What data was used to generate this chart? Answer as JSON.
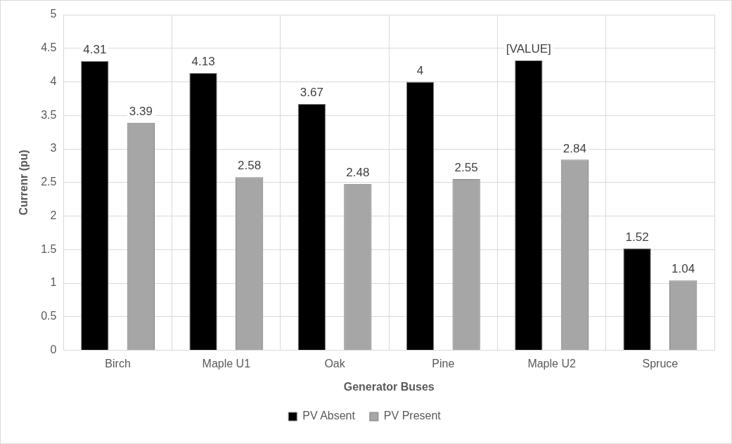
{
  "chart_data": {
    "type": "bar",
    "categories": [
      "Birch",
      "Maple U1",
      "Oak",
      "Pine",
      "Maple U2",
      "Spruce"
    ],
    "series": [
      {
        "name": "PV Absent",
        "color": "#000000",
        "values": [
          4.31,
          4.13,
          3.67,
          4,
          4.32,
          1.52
        ],
        "value_labels": [
          "4.31",
          "4.13",
          "3.67",
          "4",
          "[VALUE]",
          "1.52"
        ]
      },
      {
        "name": "PV Present",
        "color": "#a6a6a6",
        "values": [
          3.39,
          2.58,
          2.48,
          2.55,
          2.84,
          1.04
        ],
        "value_labels": [
          "3.39",
          "2.58",
          "2.48",
          "2.55",
          "2.84",
          "1.04"
        ]
      }
    ],
    "xlabel": "Generator Buses",
    "ylabel": "Currenr (pu)",
    "ylim": [
      0,
      5
    ],
    "yticks": [
      0,
      0.5,
      1,
      1.5,
      2,
      2.5,
      3,
      3.5,
      4,
      4.5,
      5
    ],
    "grid": true,
    "legend": "bottom"
  }
}
